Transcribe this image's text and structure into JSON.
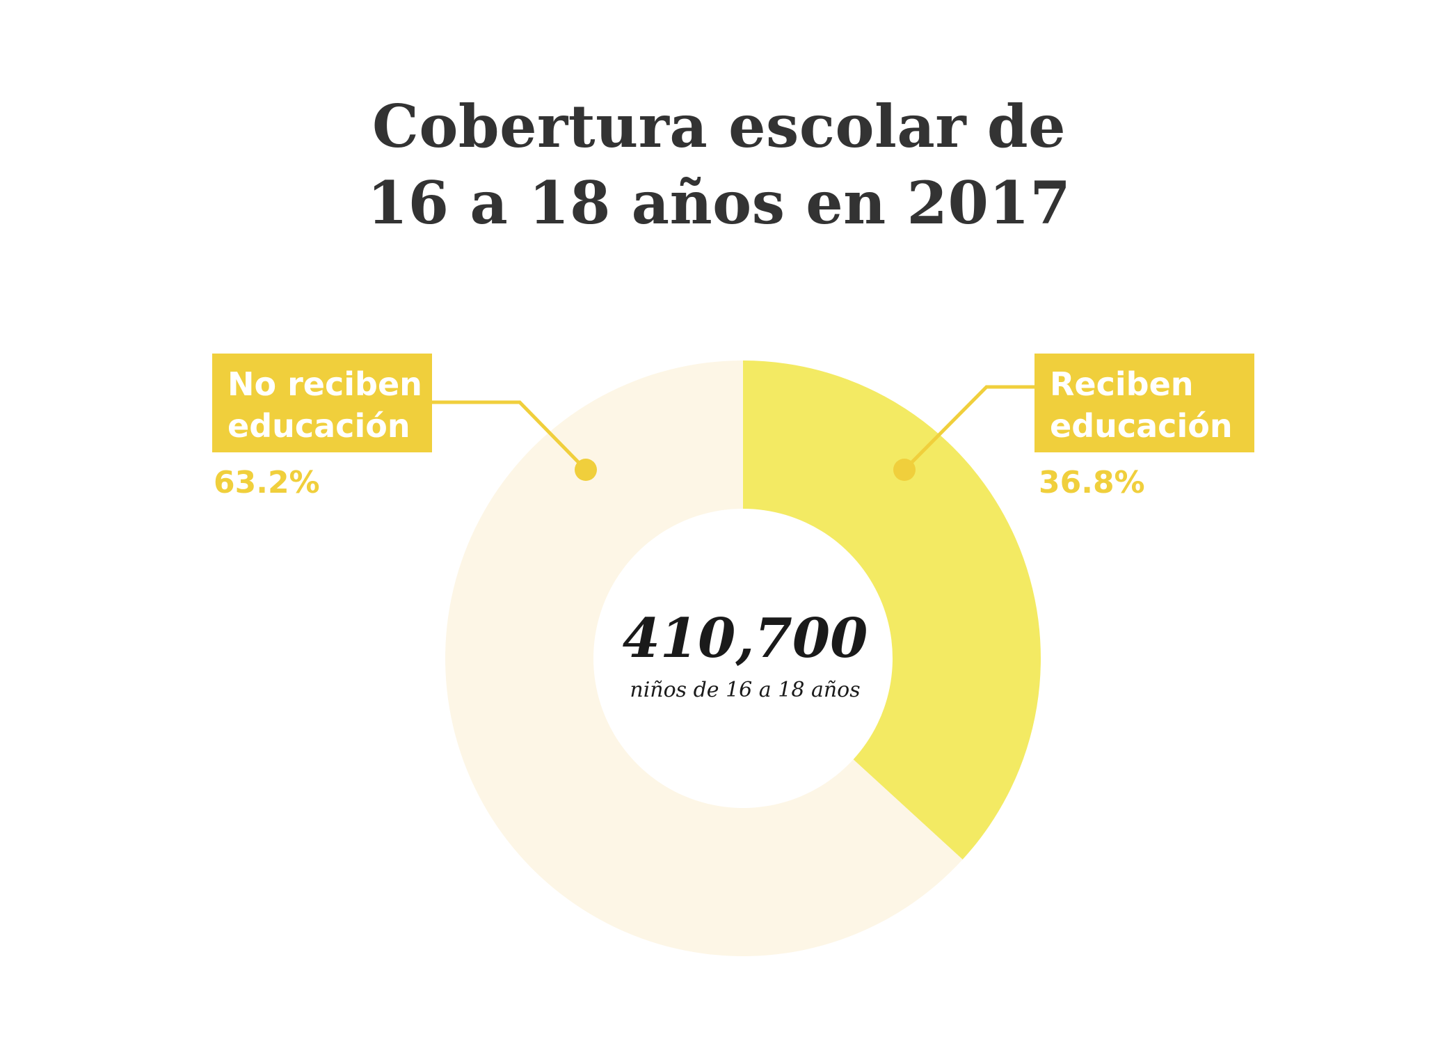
{
  "title": {
    "line1": "Cobertura escolar de",
    "line2": "16 a 18 años en 2017"
  },
  "colors": {
    "no_reciben": "#fdf6e6",
    "reciben": "#f3ea63",
    "label_box": "#f0cf3c",
    "label_text": "#ffffff",
    "percent_text": "#f0cf3c",
    "leader_line": "#f0cf3c"
  },
  "center": {
    "value": "410,700",
    "caption": "niños de 16 a 18 años"
  },
  "labels": {
    "no_reciben": {
      "line1": "No reciben",
      "line2": "educación",
      "percent": "63.2%"
    },
    "reciben": {
      "line1": "Reciben",
      "line2": "educación",
      "percent": "36.8%"
    }
  },
  "chart_data": {
    "type": "pie",
    "title": "Cobertura escolar de 16 a 18 años en 2017",
    "total": 410700,
    "total_label": "niños de 16 a 18 años",
    "categories": [
      "Reciben educación",
      "No reciben educación"
    ],
    "values": [
      36.8,
      63.2
    ],
    "unit": "%",
    "donut": true
  }
}
